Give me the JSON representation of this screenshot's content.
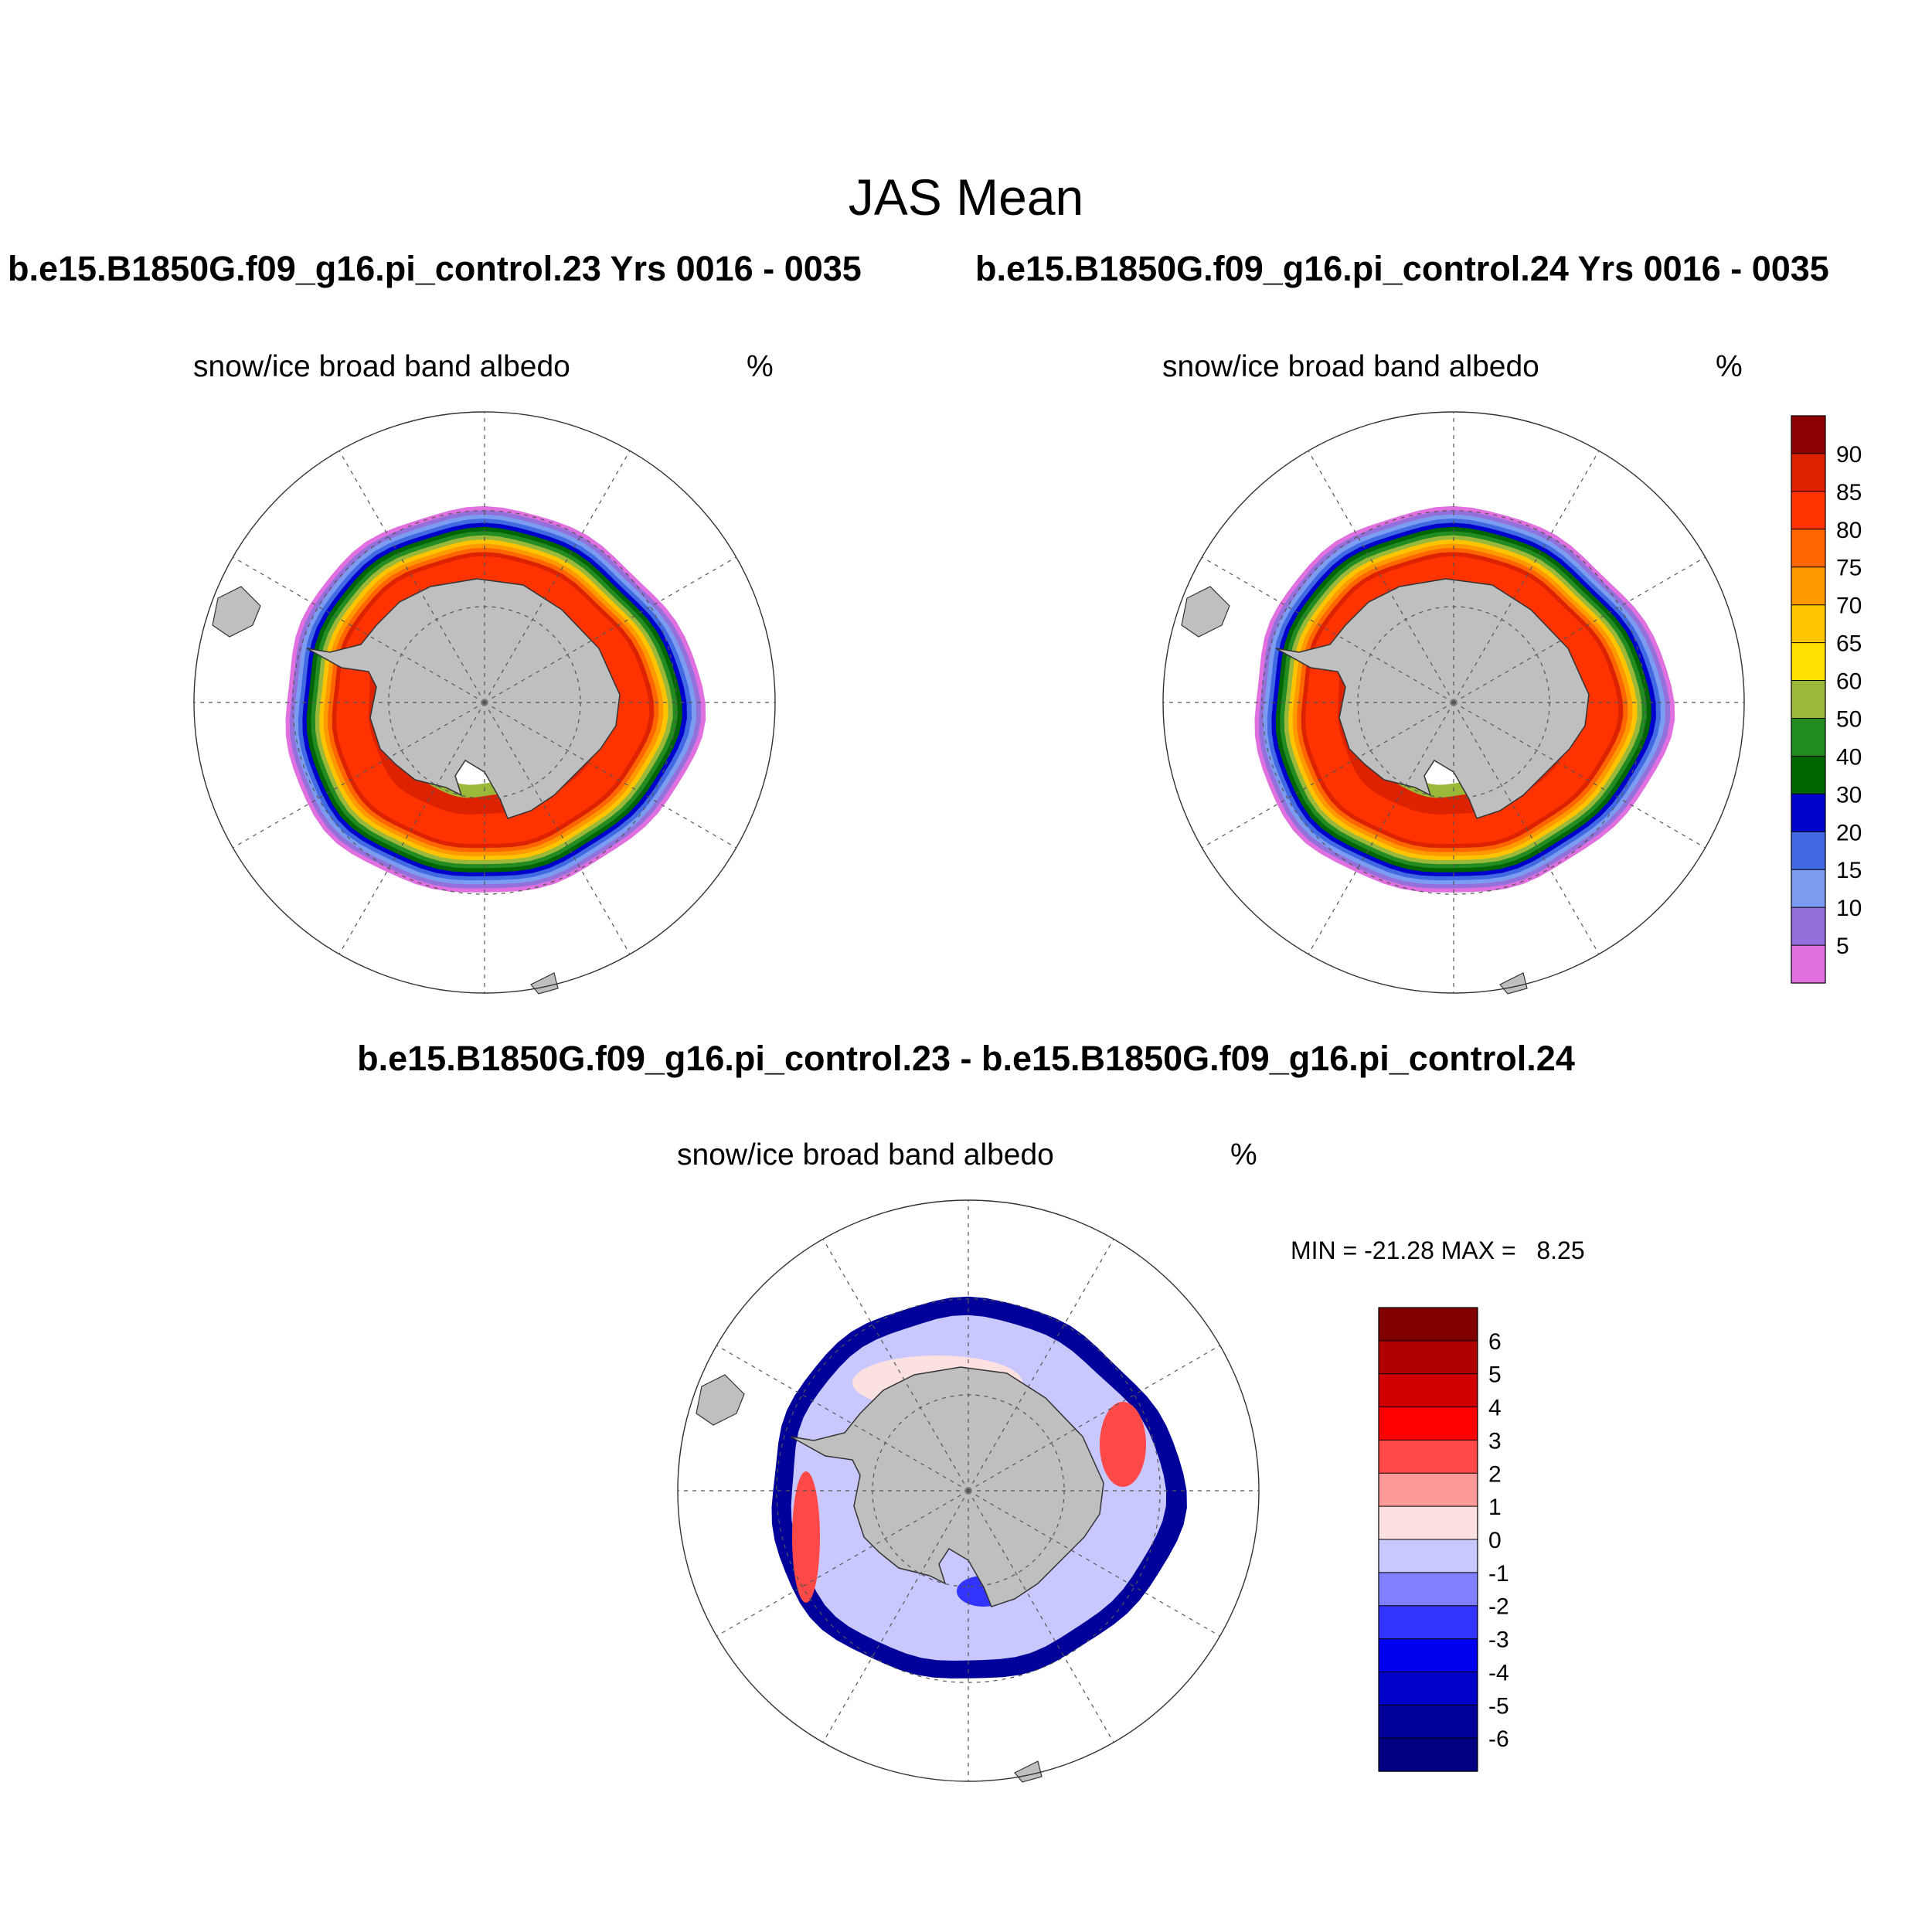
{
  "title": "JAS Mean",
  "case_titles": [
    "b.e15.B1850G.f09_g16.pi_control.23  Yrs 0016 - 0035",
    "b.e15.B1850G.f09_g16.pi_control.24  Yrs 0016 - 0035"
  ],
  "diff_title": "b.e15.B1850G.f09_g16.pi_control.23 - b.e15.B1850G.f09_g16.pi_control.24",
  "panels": [
    {
      "variable": "snow/ice broad band albedo",
      "units": "%"
    },
    {
      "variable": "snow/ice broad band albedo",
      "units": "%"
    },
    {
      "variable": "snow/ice broad band albedo",
      "units": "%"
    }
  ],
  "minmax_text": "MIN = -21.28 MAX =   8.25",
  "chart_data": {
    "type": "polar-stereographic-contour",
    "projection": "south-polar-stereographic",
    "colorbars": {
      "albedo": {
        "levels": [
          "5",
          "10",
          "15",
          "20",
          "30",
          "40",
          "50",
          "60",
          "65",
          "70",
          "75",
          "80",
          "85",
          "90"
        ],
        "colors": [
          "#e070e0",
          "#9370db",
          "#7b9cf0",
          "#4169e1",
          "#0000cd",
          "#006400",
          "#228b22",
          "#9ab93a",
          "#ffe000",
          "#ffc400",
          "#ff9900",
          "#ff6600",
          "#ff3300",
          "#dd2200",
          "#8b0000"
        ]
      },
      "difference": {
        "levels": [
          "-6",
          "-5",
          "-4",
          "-3",
          "-2",
          "-1",
          "0",
          "1",
          "2",
          "3",
          "4",
          "5",
          "6"
        ],
        "colors": [
          "#000080",
          "#00009a",
          "#0000c8",
          "#0000f0",
          "#3333ff",
          "#8080ff",
          "#c8c8ff",
          "#fde0e0",
          "#ff9a9a",
          "#ff4848",
          "#ff0000",
          "#d00000",
          "#ae0000",
          "#800000"
        ]
      }
    },
    "fields": {
      "albedo_ring_band_colors": [
        "#e070e0",
        "#9370db",
        "#7b9cf0",
        "#4169e1",
        "#0000cd",
        "#006400",
        "#228b22",
        "#9ab93a",
        "#ffc400",
        "#ff9900",
        "#ff6600",
        "#dd2200",
        "#ff3300"
      ],
      "difference_description_colors": [
        "#00009a",
        "#c8c8ff",
        "#fde0e0",
        "#ff4848",
        "#3333ff"
      ]
    },
    "land_color": "#bfbfbf",
    "grid": true
  }
}
